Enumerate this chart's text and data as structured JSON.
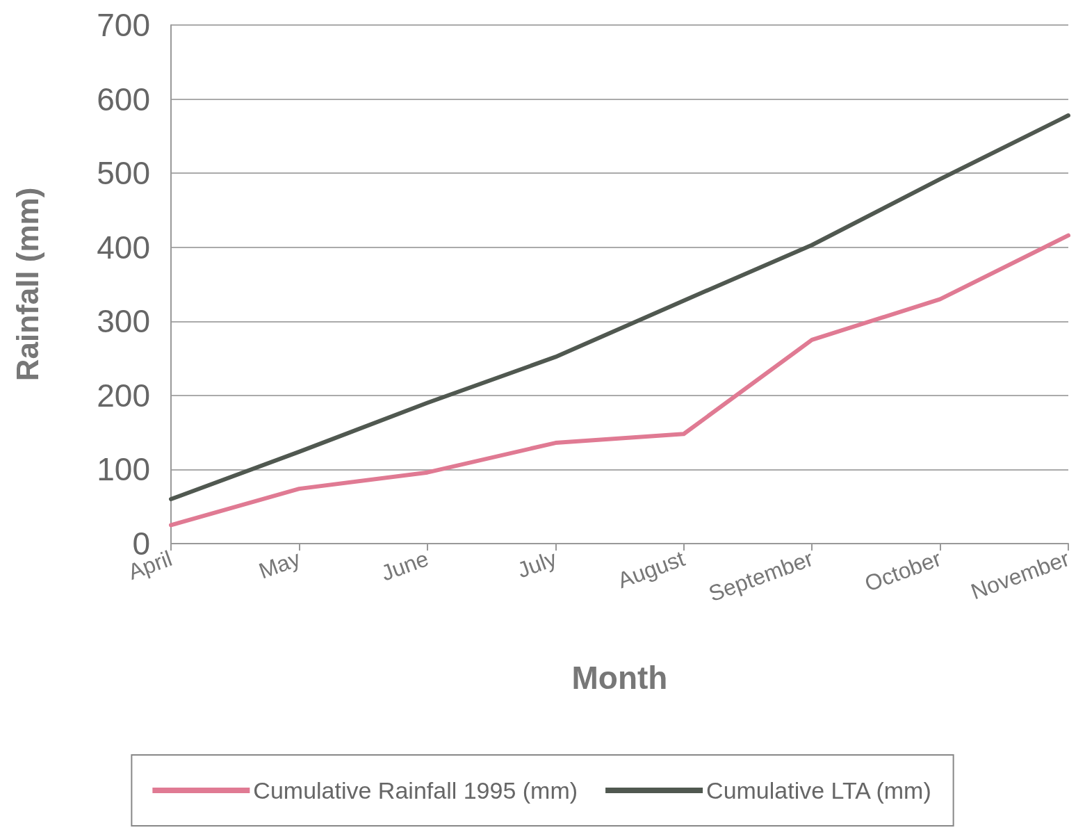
{
  "chart_data": {
    "type": "line",
    "xlabel": "Month",
    "ylabel": "Rainfall (mm)",
    "categories": [
      "April",
      "May",
      "June",
      "July",
      "August",
      "September",
      "October",
      "November"
    ],
    "series": [
      {
        "name": "Cumulative Rainfall 1995 (mm)",
        "color": "#e07a93",
        "values": [
          25,
          74,
          96,
          136,
          148,
          275,
          330,
          416
        ]
      },
      {
        "name": "Cumulative LTA (mm)",
        "color": "#505850",
        "values": [
          60,
          124,
          190,
          252,
          328,
          403,
          492,
          578
        ]
      }
    ],
    "ylim": [
      0,
      700
    ],
    "yticks": [
      0,
      100,
      200,
      300,
      400,
      500,
      600,
      700
    ],
    "grid": "y",
    "legend": "bottom",
    "marker": "none",
    "line_style": "solid"
  }
}
